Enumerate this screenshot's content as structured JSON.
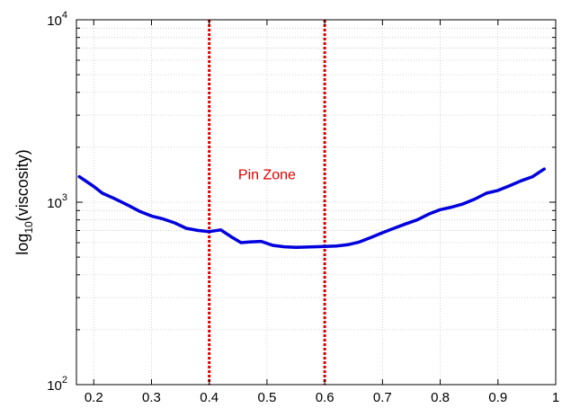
{
  "chart_data": {
    "type": "line",
    "ylabel": {
      "base": "log",
      "sub": "10",
      "rest": "(viscosity)"
    },
    "xlim": [
      0.17,
      1.0
    ],
    "ylim": [
      100,
      10000
    ],
    "yscale": "log",
    "grid": true,
    "xticks": [
      0.2,
      0.3,
      0.4,
      0.5,
      0.6,
      0.7,
      0.8,
      0.9,
      1
    ],
    "xtick_labels": [
      "0.2",
      "0.3",
      "0.4",
      "0.5",
      "0.6",
      "0.7",
      "0.8",
      "0.9",
      "1"
    ],
    "yticks": [
      {
        "value": 100,
        "base": "10",
        "exp": "2"
      },
      {
        "value": 1000,
        "base": "10",
        "exp": "3"
      },
      {
        "value": 10000,
        "base": "10",
        "exp": "4"
      }
    ],
    "series": [
      {
        "color": "#0000dd",
        "x": [
          0.175,
          0.2,
          0.215,
          0.235,
          0.26,
          0.28,
          0.3,
          0.32,
          0.34,
          0.36,
          0.38,
          0.4,
          0.42,
          0.44,
          0.455,
          0.47,
          0.49,
          0.51,
          0.53,
          0.55,
          0.57,
          0.6,
          0.62,
          0.64,
          0.66,
          0.68,
          0.7,
          0.72,
          0.74,
          0.76,
          0.78,
          0.8,
          0.82,
          0.84,
          0.86,
          0.88,
          0.9,
          0.92,
          0.94,
          0.96,
          0.98
        ],
        "y": [
          1380,
          1220,
          1120,
          1050,
          960,
          890,
          840,
          810,
          770,
          720,
          700,
          690,
          705,
          640,
          600,
          605,
          610,
          580,
          570,
          565,
          568,
          572,
          575,
          585,
          605,
          640,
          680,
          720,
          760,
          800,
          860,
          910,
          940,
          980,
          1040,
          1120,
          1160,
          1230,
          1310,
          1380,
          1520
        ]
      }
    ],
    "vlines": [
      {
        "x": 0.4,
        "color": "#dd0000",
        "style": "dotted"
      },
      {
        "x": 0.6,
        "color": "#dd0000",
        "style": "dotted"
      }
    ],
    "annotations": [
      {
        "text": "Pin Zone",
        "x": 0.5,
        "y": 1430,
        "color": "#dd0000"
      }
    ]
  }
}
